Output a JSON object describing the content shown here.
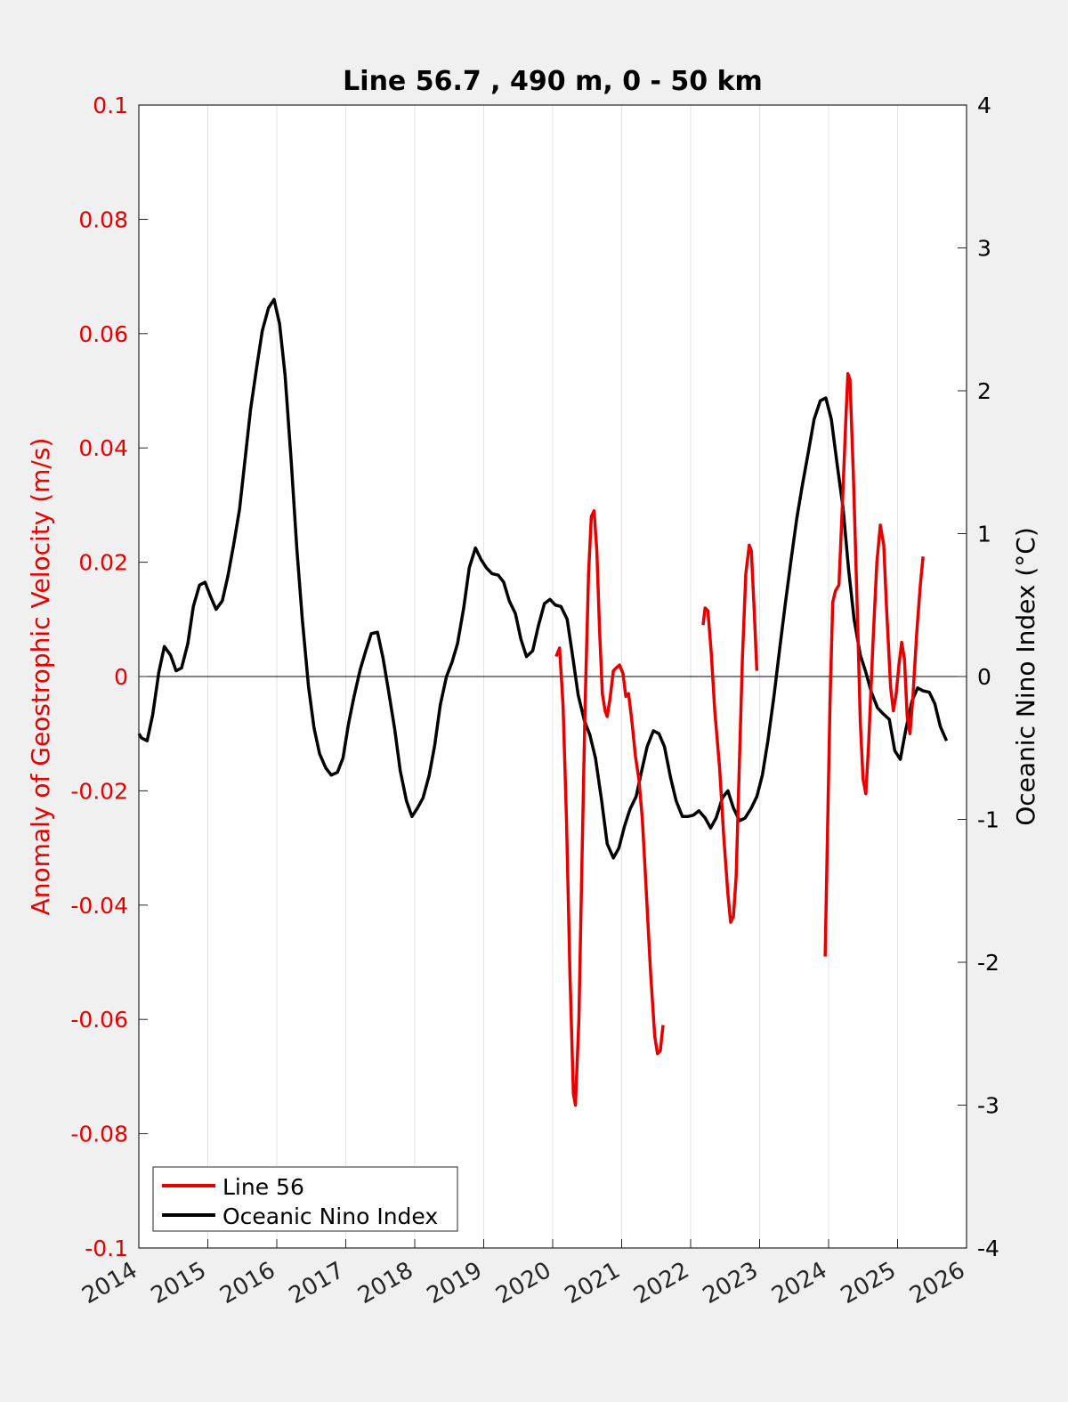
{
  "chart_data": {
    "type": "line",
    "title": "Line 56.7 , 490 m, 0 - 50 km",
    "xlim": [
      2014,
      2026
    ],
    "x_ticks": [
      "2014",
      "2015",
      "2016",
      "2017",
      "2018",
      "2019",
      "2020",
      "2021",
      "2022",
      "2023",
      "2024",
      "2025",
      "2026"
    ],
    "y_left": {
      "label": "Anomaly of Geostrophic Velocity (m/s)",
      "lim": [
        -0.1,
        0.1
      ],
      "ticks": [
        "-0.1",
        "-0.08",
        "-0.06",
        "-0.04",
        "-0.02",
        "0",
        "0.02",
        "0.04",
        "0.06",
        "0.08",
        "0.1"
      ],
      "color": "#e60000"
    },
    "y_right": {
      "label": "Oceanic Nino Index (°C)",
      "lim": [
        -4,
        4
      ],
      "ticks": [
        "-4",
        "-3",
        "-2",
        "-1",
        "0",
        "1",
        "2",
        "3",
        "4"
      ],
      "color": "#000000"
    },
    "grid": "vertical",
    "legend_position": "bottom-left",
    "legend": [
      "Line 56",
      "Oceanic Nino Index"
    ],
    "series": [
      {
        "name": "Line 56",
        "axis": "left",
        "color": "#e60000",
        "segments": [
          [
            [
              2020.05,
              0.0035
            ],
            [
              2020.1,
              0.005
            ],
            [
              2020.15,
              -0.005
            ],
            [
              2020.2,
              -0.025
            ],
            [
              2020.25,
              -0.052
            ],
            [
              2020.3,
              -0.073
            ],
            [
              2020.33,
              -0.075
            ],
            [
              2020.38,
              -0.06
            ],
            [
              2020.42,
              -0.035
            ],
            [
              2020.47,
              -0.005
            ],
            [
              2020.52,
              0.018
            ],
            [
              2020.56,
              0.028
            ],
            [
              2020.6,
              0.029
            ],
            [
              2020.64,
              0.022
            ],
            [
              2020.68,
              0.008
            ],
            [
              2020.72,
              -0.003
            ],
            [
              2020.76,
              -0.006
            ],
            [
              2020.79,
              -0.007
            ],
            [
              2020.83,
              -0.004
            ],
            [
              2020.88,
              0.001
            ],
            [
              2020.92,
              0.0015
            ],
            [
              2020.97,
              0.002
            ],
            [
              2021.02,
              0.0005
            ],
            [
              2021.06,
              -0.0035
            ],
            [
              2021.1,
              -0.003
            ],
            [
              2021.15,
              -0.008
            ],
            [
              2021.2,
              -0.014
            ],
            [
              2021.25,
              -0.018
            ],
            [
              2021.3,
              -0.025
            ],
            [
              2021.35,
              -0.036
            ],
            [
              2021.42,
              -0.052
            ],
            [
              2021.48,
              -0.063
            ],
            [
              2021.52,
              -0.066
            ],
            [
              2021.56,
              -0.0655
            ],
            [
              2021.6,
              -0.061
            ]
          ],
          [
            [
              2022.18,
              0.009
            ],
            [
              2022.21,
              0.012
            ],
            [
              2022.25,
              0.0115
            ],
            [
              2022.3,
              0.004
            ],
            [
              2022.35,
              -0.006
            ],
            [
              2022.42,
              -0.016
            ],
            [
              2022.48,
              -0.028
            ],
            [
              2022.54,
              -0.038
            ],
            [
              2022.58,
              -0.043
            ],
            [
              2022.62,
              -0.042
            ],
            [
              2022.66,
              -0.035
            ],
            [
              2022.7,
              -0.018
            ],
            [
              2022.75,
              0.003
            ],
            [
              2022.8,
              0.018
            ],
            [
              2022.85,
              0.023
            ],
            [
              2022.88,
              0.022
            ],
            [
              2022.92,
              0.012
            ],
            [
              2022.96,
              0.001
            ]
          ],
          [
            [
              2023.95,
              -0.049
            ],
            [
              2023.98,
              -0.03
            ],
            [
              2024.02,
              -0.005
            ],
            [
              2024.06,
              0.013
            ],
            [
              2024.1,
              0.015
            ],
            [
              2024.15,
              0.016
            ],
            [
              2024.2,
              0.03
            ],
            [
              2024.25,
              0.045
            ],
            [
              2024.28,
              0.053
            ],
            [
              2024.31,
              0.052
            ],
            [
              2024.36,
              0.035
            ],
            [
              2024.42,
              0.01
            ],
            [
              2024.46,
              -0.008
            ],
            [
              2024.5,
              -0.018
            ],
            [
              2024.54,
              -0.0205
            ],
            [
              2024.58,
              -0.012
            ],
            [
              2024.64,
              0.005
            ],
            [
              2024.7,
              0.02
            ],
            [
              2024.75,
              0.0265
            ],
            [
              2024.8,
              0.023
            ],
            [
              2024.84,
              0.012
            ],
            [
              2024.9,
              -0.002
            ],
            [
              2024.94,
              -0.006
            ],
            [
              2024.98,
              -0.003
            ],
            [
              2025.02,
              0.002
            ],
            [
              2025.06,
              0.006
            ],
            [
              2025.1,
              0.003
            ],
            [
              2025.14,
              -0.007
            ],
            [
              2025.18,
              -0.01
            ],
            [
              2025.22,
              -0.004
            ],
            [
              2025.28,
              0.008
            ],
            [
              2025.33,
              0.016
            ],
            [
              2025.37,
              0.021
            ]
          ]
        ]
      },
      {
        "name": "Oceanic Nino Index",
        "axis": "right",
        "color": "#000000",
        "points": [
          [
            2014.0,
            -0.4
          ],
          [
            2014.04,
            -0.43
          ],
          [
            2014.12,
            -0.45
          ],
          [
            2014.2,
            -0.27
          ],
          [
            2014.29,
            0.03
          ],
          [
            2014.37,
            0.21
          ],
          [
            2014.46,
            0.15
          ],
          [
            2014.54,
            0.04
          ],
          [
            2014.62,
            0.06
          ],
          [
            2014.71,
            0.23
          ],
          [
            2014.79,
            0.49
          ],
          [
            2014.88,
            0.64
          ],
          [
            2014.96,
            0.66
          ],
          [
            2015.04,
            0.56
          ],
          [
            2015.12,
            0.47
          ],
          [
            2015.21,
            0.53
          ],
          [
            2015.29,
            0.7
          ],
          [
            2015.37,
            0.91
          ],
          [
            2015.46,
            1.17
          ],
          [
            2015.54,
            1.52
          ],
          [
            2015.62,
            1.87
          ],
          [
            2015.71,
            2.17
          ],
          [
            2015.79,
            2.42
          ],
          [
            2015.88,
            2.58
          ],
          [
            2015.96,
            2.64
          ],
          [
            2016.04,
            2.47
          ],
          [
            2016.12,
            2.11
          ],
          [
            2016.21,
            1.5
          ],
          [
            2016.29,
            0.9
          ],
          [
            2016.37,
            0.4
          ],
          [
            2016.46,
            -0.07
          ],
          [
            2016.54,
            -0.36
          ],
          [
            2016.62,
            -0.54
          ],
          [
            2016.71,
            -0.64
          ],
          [
            2016.79,
            -0.69
          ],
          [
            2016.88,
            -0.67
          ],
          [
            2016.96,
            -0.57
          ],
          [
            2017.04,
            -0.33
          ],
          [
            2017.12,
            -0.14
          ],
          [
            2017.21,
            0.05
          ],
          [
            2017.29,
            0.18
          ],
          [
            2017.37,
            0.3
          ],
          [
            2017.46,
            0.31
          ],
          [
            2017.54,
            0.13
          ],
          [
            2017.62,
            -0.1
          ],
          [
            2017.71,
            -0.37
          ],
          [
            2017.79,
            -0.66
          ],
          [
            2017.88,
            -0.87
          ],
          [
            2017.96,
            -0.98
          ],
          [
            2018.04,
            -0.92
          ],
          [
            2018.12,
            -0.85
          ],
          [
            2018.21,
            -0.69
          ],
          [
            2018.29,
            -0.48
          ],
          [
            2018.37,
            -0.2
          ],
          [
            2018.46,
            0.0
          ],
          [
            2018.54,
            0.1
          ],
          [
            2018.62,
            0.23
          ],
          [
            2018.71,
            0.48
          ],
          [
            2018.79,
            0.76
          ],
          [
            2018.88,
            0.9
          ],
          [
            2018.96,
            0.82
          ],
          [
            2019.04,
            0.76
          ],
          [
            2019.12,
            0.72
          ],
          [
            2019.21,
            0.71
          ],
          [
            2019.29,
            0.66
          ],
          [
            2019.37,
            0.53
          ],
          [
            2019.46,
            0.44
          ],
          [
            2019.54,
            0.26
          ],
          [
            2019.62,
            0.14
          ],
          [
            2019.71,
            0.18
          ],
          [
            2019.79,
            0.35
          ],
          [
            2019.88,
            0.51
          ],
          [
            2019.96,
            0.54
          ],
          [
            2020.04,
            0.5
          ],
          [
            2020.12,
            0.49
          ],
          [
            2020.21,
            0.4
          ],
          [
            2020.29,
            0.14
          ],
          [
            2020.37,
            -0.13
          ],
          [
            2020.46,
            -0.31
          ],
          [
            2020.54,
            -0.41
          ],
          [
            2020.62,
            -0.57
          ],
          [
            2020.71,
            -0.87
          ],
          [
            2020.79,
            -1.17
          ],
          [
            2020.88,
            -1.27
          ],
          [
            2020.96,
            -1.2
          ],
          [
            2021.04,
            -1.05
          ],
          [
            2021.12,
            -0.93
          ],
          [
            2021.21,
            -0.84
          ],
          [
            2021.29,
            -0.66
          ],
          [
            2021.37,
            -0.49
          ],
          [
            2021.46,
            -0.38
          ],
          [
            2021.54,
            -0.4
          ],
          [
            2021.62,
            -0.49
          ],
          [
            2021.71,
            -0.71
          ],
          [
            2021.79,
            -0.87
          ],
          [
            2021.88,
            -0.98
          ],
          [
            2021.96,
            -0.98
          ],
          [
            2022.04,
            -0.97
          ],
          [
            2022.12,
            -0.94
          ],
          [
            2022.21,
            -0.99
          ],
          [
            2022.29,
            -1.06
          ],
          [
            2022.37,
            -0.99
          ],
          [
            2022.46,
            -0.85
          ],
          [
            2022.54,
            -0.8
          ],
          [
            2022.62,
            -0.92
          ],
          [
            2022.71,
            -1.01
          ],
          [
            2022.79,
            -0.99
          ],
          [
            2022.88,
            -0.92
          ],
          [
            2022.96,
            -0.84
          ],
          [
            2023.04,
            -0.69
          ],
          [
            2023.12,
            -0.45
          ],
          [
            2023.21,
            -0.13
          ],
          [
            2023.29,
            0.19
          ],
          [
            2023.37,
            0.5
          ],
          [
            2023.46,
            0.83
          ],
          [
            2023.54,
            1.11
          ],
          [
            2023.62,
            1.34
          ],
          [
            2023.71,
            1.58
          ],
          [
            2023.79,
            1.8
          ],
          [
            2023.88,
            1.93
          ],
          [
            2023.96,
            1.95
          ],
          [
            2024.04,
            1.8
          ],
          [
            2024.12,
            1.5
          ],
          [
            2024.21,
            1.18
          ],
          [
            2024.29,
            0.75
          ],
          [
            2024.37,
            0.4
          ],
          [
            2024.46,
            0.15
          ],
          [
            2024.54,
            0.03
          ],
          [
            2024.62,
            -0.11
          ],
          [
            2024.71,
            -0.22
          ],
          [
            2024.79,
            -0.26
          ],
          [
            2024.88,
            -0.3
          ],
          [
            2024.96,
            -0.52
          ],
          [
            2025.04,
            -0.58
          ],
          [
            2025.12,
            -0.37
          ],
          [
            2025.21,
            -0.17
          ],
          [
            2025.29,
            -0.08
          ],
          [
            2025.37,
            -0.1
          ],
          [
            2025.46,
            -0.11
          ],
          [
            2025.54,
            -0.19
          ],
          [
            2025.62,
            -0.35
          ],
          [
            2025.71,
            -0.45
          ]
        ]
      }
    ]
  }
}
